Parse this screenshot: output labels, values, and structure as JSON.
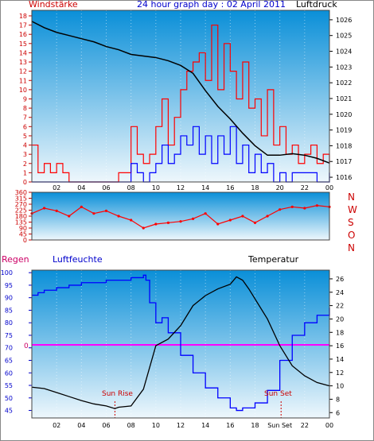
{
  "page_title": "24 hour graph day : 02 April 2011",
  "labels": {
    "wind": "Windstärke",
    "pressure": "Luftdruck",
    "rain": "Regen",
    "humidity": "Luftfeuchte",
    "temperature": "Temperatur",
    "sunrise": "Sun Rise",
    "sunset": "Sun Set",
    "sunset_tick": "Sun Set",
    "rain_zero": "0",
    "compass": [
      "N",
      "W",
      "S",
      "O",
      "N"
    ]
  },
  "colors": {
    "gradient_top": "#0a8fd8",
    "gradient_bottom": "#eef7fc",
    "wind_red": "#ff0000",
    "wind_blue": "#0000ff",
    "pressure_black": "#000000",
    "humidity_blue": "#0000ff",
    "rain_magenta": "#ff00ff",
    "sun_marker": "#cc0000",
    "title_blue": "#0000cc"
  },
  "chart_data": [
    {
      "type": "line",
      "name": "wind-and-pressure",
      "x_ticks": [
        "02",
        "04",
        "06",
        "08",
        "10",
        "12",
        "14",
        "16",
        "18",
        "20",
        "22",
        "00"
      ],
      "y_left_ticks": [
        0,
        1,
        2,
        3,
        4,
        5,
        6,
        7,
        8,
        9,
        10,
        11,
        12,
        13,
        14,
        15,
        16,
        17,
        18
      ],
      "y_left_range": [
        0,
        18.6
      ],
      "y_right_ticks": [
        1016,
        1017,
        1018,
        1019,
        1020,
        1021,
        1022,
        1023,
        1024,
        1025,
        1026
      ],
      "y_right_range": [
        1015.7,
        1026.6
      ],
      "pressure": {
        "x": [
          0,
          1,
          2,
          3,
          4,
          5,
          6,
          7,
          8,
          9,
          10,
          11,
          12,
          13,
          14,
          15,
          16,
          17,
          18,
          19,
          20,
          21,
          22,
          23,
          24
        ],
        "y": [
          1025.9,
          1025.5,
          1025.2,
          1025.0,
          1024.8,
          1024.6,
          1024.3,
          1024.1,
          1023.8,
          1023.7,
          1023.6,
          1023.4,
          1023.1,
          1022.6,
          1021.5,
          1020.5,
          1019.7,
          1018.8,
          1018.0,
          1017.4,
          1017.4,
          1017.5,
          1017.4,
          1017.2,
          1016.9
        ]
      },
      "wind_gust_notes": "red = gusts, blue = average",
      "wind_gust": {
        "x": [
          0,
          0.5,
          1,
          1.5,
          2,
          2.5,
          3,
          4,
          5,
          6,
          7,
          7.5,
          8,
          8.5,
          9,
          9.5,
          10,
          10.5,
          11,
          11.5,
          12,
          12.5,
          13,
          13.5,
          14,
          14.5,
          15,
          15.5,
          16,
          16.5,
          17,
          17.5,
          18,
          18.5,
          19,
          19.5,
          20,
          20.5,
          21,
          21.5,
          22,
          22.5,
          23,
          23.5,
          24
        ],
        "y": [
          4,
          1,
          2,
          1,
          2,
          1,
          0,
          0,
          0,
          0,
          1,
          1,
          6,
          3,
          2,
          3,
          6,
          9,
          4,
          7,
          10,
          12,
          13,
          14,
          11,
          17,
          10,
          15,
          12,
          9,
          13,
          8,
          9,
          5,
          10,
          4,
          6,
          3,
          4,
          2,
          3,
          4,
          2,
          3,
          2
        ]
      },
      "wind_avg": {
        "x": [
          0,
          7.5,
          8,
          8.5,
          9,
          9.5,
          10,
          10.5,
          11,
          11.5,
          12,
          12.5,
          13,
          13.5,
          14,
          14.5,
          15,
          15.5,
          16,
          16.5,
          17,
          17.5,
          18,
          18.5,
          19,
          19.5,
          20,
          20.5,
          21,
          22,
          23,
          24
        ],
        "y": [
          0,
          0,
          2,
          1,
          0,
          1,
          2,
          4,
          2,
          3,
          5,
          4,
          6,
          3,
          5,
          2,
          5,
          3,
          6,
          2,
          4,
          1,
          3,
          1,
          2,
          0,
          1,
          0,
          1,
          1,
          0,
          1
        ]
      }
    },
    {
      "type": "scatter",
      "name": "wind-direction",
      "y_ticks": [
        0,
        45,
        90,
        135,
        180,
        225,
        270,
        315,
        360
      ],
      "y_range": [
        0,
        360
      ],
      "x": [
        0,
        1,
        2,
        3,
        4,
        5,
        6,
        7,
        8,
        9,
        10,
        11,
        12,
        13,
        14,
        15,
        16,
        17,
        18,
        19,
        20,
        21,
        22,
        23,
        24
      ],
      "y": [
        200,
        240,
        220,
        180,
        250,
        200,
        220,
        180,
        150,
        90,
        120,
        130,
        140,
        160,
        200,
        120,
        150,
        180,
        130,
        180,
        230,
        250,
        240,
        260,
        250
      ]
    },
    {
      "type": "line",
      "name": "humidity-temperature-rain",
      "x_ticks": [
        "02",
        "04",
        "06",
        "08",
        "10",
        "12",
        "14",
        "16",
        "18",
        "Sun Set",
        "22",
        "00"
      ],
      "y_left_ticks": [
        45,
        50,
        55,
        60,
        65,
        70,
        75,
        80,
        85,
        90,
        95,
        100
      ],
      "y_left_range": [
        42,
        101
      ],
      "y_right_ticks": [
        6,
        8,
        10,
        12,
        14,
        16,
        18,
        20,
        22,
        24,
        26
      ],
      "y_right_range": [
        5.2,
        27.3
      ],
      "humidity": {
        "x": [
          0,
          0.5,
          1,
          2,
          3,
          4,
          5,
          6,
          7,
          8,
          9,
          9.2,
          9.5,
          10,
          10.5,
          11,
          12,
          13,
          14,
          15,
          16,
          16.5,
          17,
          18,
          19,
          20,
          21,
          22,
          23,
          24
        ],
        "y": [
          91,
          92,
          93,
          94,
          95,
          96,
          96,
          97,
          97,
          98,
          99,
          97,
          88,
          80,
          82,
          76,
          67,
          60,
          54,
          50,
          46,
          45,
          46,
          48,
          53,
          65,
          75,
          80,
          83,
          86
        ]
      },
      "temperature": {
        "x": [
          0,
          1,
          2,
          3,
          4,
          5,
          6,
          6.7,
          7,
          8,
          9,
          10,
          11,
          12,
          13,
          14,
          15,
          16,
          16.5,
          17,
          17.5,
          18,
          19,
          20,
          21,
          22,
          23,
          24
        ],
        "y": [
          9.8,
          9.6,
          9.0,
          8.4,
          7.8,
          7.3,
          7.0,
          6.6,
          6.8,
          7.0,
          9.5,
          16.0,
          17.0,
          19.0,
          22.0,
          23.5,
          24.5,
          25.2,
          26.3,
          25.8,
          24.5,
          23.0,
          20.0,
          16.0,
          13.0,
          11.5,
          10.5,
          10.0
        ]
      },
      "rain_value": 0,
      "sunrise_hour": 6.7,
      "sunset_hour": 20.1
    }
  ]
}
